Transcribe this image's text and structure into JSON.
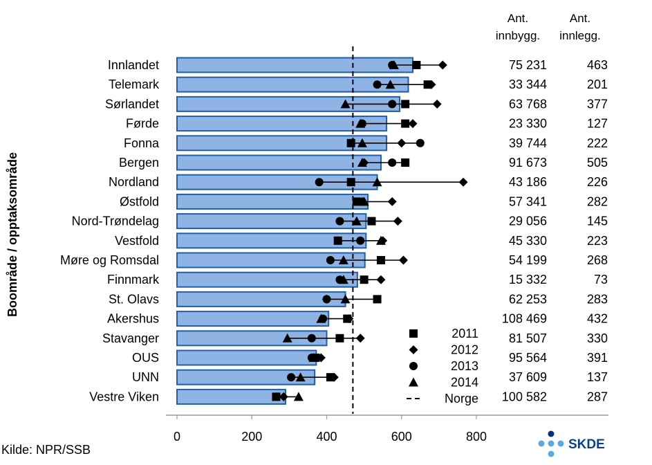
{
  "chart_data": {
    "type": "bar",
    "ylabel": "Boområde / opptaksområde",
    "xlabel": "",
    "xlim": [
      0,
      800
    ],
    "xticks": [
      0,
      200,
      400,
      600,
      800
    ],
    "norway_rate": 470,
    "source": "Kilde: NPR/SSB",
    "logo_text": "SKDE",
    "colors": {
      "bar_fill": "#8fb4e3",
      "bar_stroke": "#1f5fa8",
      "marker": "#000000"
    },
    "column_headers": {
      "population": [
        "Ant.",
        "innbygg."
      ],
      "admissions": [
        "Ant.",
        "innlegg."
      ]
    },
    "legend": [
      {
        "label": "2011",
        "symbol": "square"
      },
      {
        "label": "2012",
        "symbol": "diamond"
      },
      {
        "label": "2013",
        "symbol": "circle"
      },
      {
        "label": "2014",
        "symbol": "triangle"
      },
      {
        "label": "Norge",
        "symbol": "dashed-line"
      }
    ],
    "categories": [
      "Innlandet",
      "Telemark",
      "Sørlandet",
      "Førde",
      "Fonna",
      "Bergen",
      "Nordland",
      "Østfold",
      "Nord-Trøndelag",
      "Vestfold",
      "Møre og Romsdal",
      "Finnmark",
      "St. Olavs",
      "Akershus",
      "Stavanger",
      "OUS",
      "UNN",
      "Vestre Viken"
    ],
    "bar_values": [
      630,
      618,
      595,
      560,
      560,
      545,
      535,
      510,
      505,
      505,
      502,
      482,
      450,
      405,
      400,
      372,
      368,
      290
    ],
    "series": [
      {
        "name": "2011",
        "values": [
          640,
          670,
          610,
          610,
          465,
          610,
          465,
          480,
          520,
          430,
          545,
          500,
          535,
          455,
          435,
          370,
          410,
          265
        ]
      },
      {
        "name": "2012",
        "values": [
          710,
          680,
          695,
          630,
          600,
          500,
          765,
          575,
          590,
          550,
          605,
          545,
          400,
          460,
          490,
          385,
          420,
          285
        ]
      },
      {
        "name": "2013",
        "values": [
          575,
          535,
          575,
          495,
          650,
          575,
          380,
          495,
          435,
          490,
          410,
          435,
          400,
          390,
          360,
          360,
          305,
          265
        ]
      },
      {
        "name": "2014",
        "values": [
          580,
          570,
          450,
          490,
          495,
          495,
          535,
          500,
          480,
          545,
          445,
          445,
          450,
          385,
          295,
          365,
          330,
          325
        ]
      }
    ],
    "population": [
      "75 231",
      "33 344",
      "63 768",
      "23 330",
      "39 744",
      "91 673",
      "43 186",
      "57 341",
      "29 056",
      "45 330",
      "54 199",
      "15 332",
      "62 253",
      "108 469",
      "81 507",
      "95 564",
      "37 609",
      "100 582"
    ],
    "admissions": [
      "463",
      "201",
      "377",
      "127",
      "222",
      "505",
      "226",
      "282",
      "145",
      "223",
      "268",
      "73",
      "283",
      "432",
      "330",
      "391",
      "137",
      "287"
    ]
  }
}
